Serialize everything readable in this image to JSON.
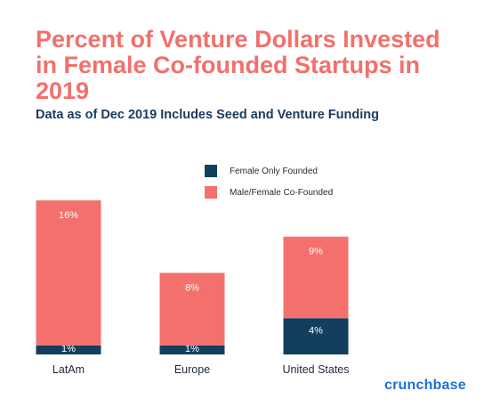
{
  "header": {
    "title": "Percent of Venture Dollars Invested in Female Co-founded Startups in 2019",
    "subtitle": "Data as of Dec 2019 Includes Seed and Venture Funding"
  },
  "legend": {
    "items": [
      {
        "label": "Female Only Founded",
        "color": "#133f5e"
      },
      {
        "label": "Male/Female Co-Founded",
        "color": "#f4706d"
      }
    ]
  },
  "brand": {
    "label": "crunchbase",
    "color": "#1f6fde"
  },
  "chart_data": {
    "type": "bar",
    "stacked": true,
    "categories": [
      "LatAm",
      "Europe",
      "United States"
    ],
    "series": [
      {
        "name": "Female Only Founded",
        "values": [
          1,
          1,
          4
        ],
        "labels": [
          "1%",
          "1%",
          "4%"
        ],
        "color": "#133f5e"
      },
      {
        "name": "Male/Female Co-Founded",
        "values": [
          16,
          8,
          9
        ],
        "labels": [
          "16%",
          "8%",
          "9%"
        ],
        "color": "#f4706d"
      }
    ],
    "ylim": [
      0,
      17
    ],
    "grid": false,
    "legend_position": "top"
  }
}
